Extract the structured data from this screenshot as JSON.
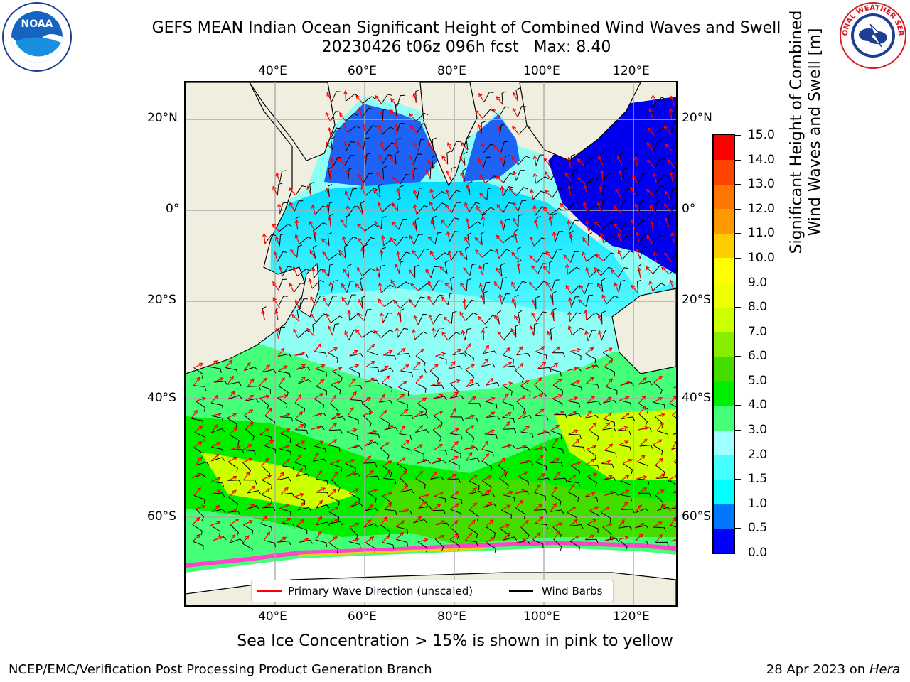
{
  "header": {
    "title_line1": "GEFS MEAN Indian Ocean Significant Height of Combined Wind Waves and Swell",
    "title_line2": "20230426 t06z 096h fcst   Max: 8.40"
  },
  "logos": {
    "noaa_text": "NOAA",
    "noaa_ring_text": "NATIONAL OCEANIC AND ATMOSPHERIC ADMINISTRATION · U.S. DEPARTMENT OF COMMERCE",
    "nws_ring_text": "NATIONAL WEATHER SERVICE"
  },
  "map": {
    "lon_ticks_top": [
      "40°E",
      "60°E",
      "80°E",
      "100°E",
      "120°E"
    ],
    "lon_ticks_bottom": [
      "40°E",
      "60°E",
      "80°E",
      "100°E",
      "120°E"
    ],
    "lat_ticks_left": [
      "20°N",
      "0°",
      "20°S",
      "40°S",
      "60°S"
    ],
    "lat_ticks_right": [
      "20°N",
      "0°",
      "20°S",
      "40°S",
      "60°S"
    ],
    "legend": {
      "wave_label": "Primary Wave Direction (unscaled)",
      "wave_color": "#ff0000",
      "wind_label": "Wind Barbs",
      "wind_color": "#000000"
    }
  },
  "colorbar": {
    "label_line1": "Significant Height of Combined",
    "label_line2": "Wind Waves and Swell [m]",
    "ticks": [
      "0.0",
      "0.5",
      "1.0",
      "1.5",
      "2.0",
      "3.0",
      "4.0",
      "5.0",
      "6.0",
      "7.0",
      "8.0",
      "9.0",
      "10.0",
      "11.0",
      "12.0",
      "13.0",
      "14.0",
      "15.0"
    ],
    "colors": [
      "#0000ff",
      "#0077ff",
      "#00ffff",
      "#44ffff",
      "#a0ffff",
      "#44ff77",
      "#00ee00",
      "#44dd00",
      "#88ee00",
      "#ccff00",
      "#eeff00",
      "#ffff00",
      "#ffcc00",
      "#ff9900",
      "#ff7700",
      "#ff4400",
      "#ff0000"
    ]
  },
  "footer": {
    "sea_ice_note": "Sea Ice Concentration > 15% is shown in pink to yellow",
    "branch": "NCEP/EMC/Verification Post Processing Product Generation Branch",
    "date": "28 Apr 2023 on ",
    "host": "Hera"
  }
}
